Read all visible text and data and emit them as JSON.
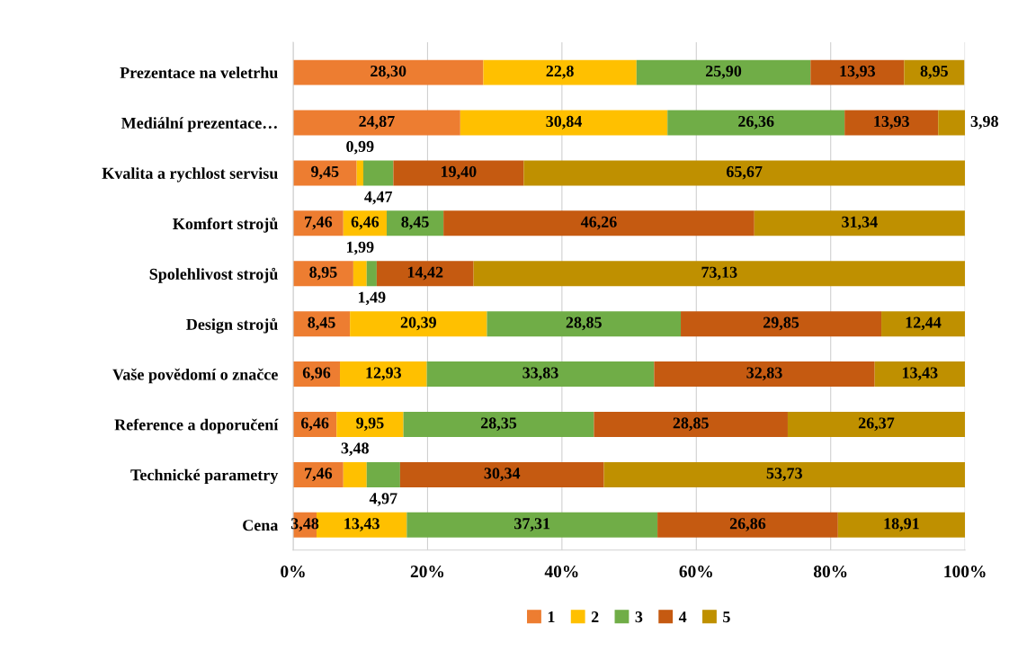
{
  "chart_data": {
    "type": "bar",
    "orientation": "horizontal",
    "stacked": true,
    "categories": [
      "Prezentace na veletrhu",
      "Mediální prezentace…",
      "Kvalita a rychlost servisu",
      "Komfort strojů",
      "Spolehlivost strojů",
      "Design strojů",
      "Vaše povědomí o značce",
      "Reference a doporučení",
      "Technické parametry",
      "Cena"
    ],
    "series": [
      {
        "name": "1",
        "color": "#ed7d31",
        "values": [
          28.3,
          24.87,
          9.45,
          7.46,
          8.95,
          8.45,
          6.96,
          6.46,
          7.46,
          3.48
        ],
        "value_labels": [
          "28,30",
          "24,87",
          "9,45",
          "7,46",
          "8,95",
          "8,45",
          "6,96",
          "6,46",
          "7,46",
          "3,48"
        ]
      },
      {
        "name": "2",
        "color": "#ffc000",
        "values": [
          22.8,
          30.84,
          0.99,
          6.46,
          1.99,
          20.39,
          12.93,
          9.95,
          3.48,
          13.43
        ],
        "value_labels": [
          "22,8",
          "30,84",
          "0,99",
          "6,46",
          "1,99",
          "20,39",
          "12,93",
          "9,95",
          "3,48",
          "13,43"
        ]
      },
      {
        "name": "3",
        "color": "#70ad47",
        "values": [
          25.9,
          26.36,
          4.47,
          8.45,
          1.49,
          28.85,
          33.83,
          28.35,
          4.97,
          37.31
        ],
        "value_labels": [
          "25,90",
          "26,36",
          "4,47",
          "8,45",
          "1,49",
          "28,85",
          "33,83",
          "28,35",
          "4,97",
          "37,31"
        ]
      },
      {
        "name": "4",
        "color": "#c55a11",
        "values": [
          13.93,
          13.93,
          19.4,
          46.26,
          14.42,
          29.85,
          32.83,
          28.85,
          30.34,
          26.86
        ],
        "value_labels": [
          "13,93",
          "13,93",
          "19,40",
          "46,26",
          "14,42",
          "29,85",
          "32,83",
          "28,85",
          "30,34",
          "26,86"
        ]
      },
      {
        "name": "5",
        "color": "#bf9000",
        "values": [
          8.95,
          3.98,
          65.67,
          31.34,
          73.13,
          12.44,
          13.43,
          26.37,
          53.73,
          18.91
        ],
        "value_labels": [
          "8,95",
          "3,98",
          "65,67",
          "31,34",
          "73,13",
          "12,44",
          "13,43",
          "26,37",
          "53,73",
          "18,91"
        ]
      }
    ],
    "xlim": [
      0,
      100
    ],
    "xticks": [
      {
        "value": 0,
        "label": "0%"
      },
      {
        "value": 20,
        "label": "20%"
      },
      {
        "value": 40,
        "label": "40%"
      },
      {
        "value": 60,
        "label": "60%"
      },
      {
        "value": 80,
        "label": "80%"
      },
      {
        "value": 100,
        "label": "100%"
      }
    ],
    "grid": "x",
    "legend": "bottom"
  }
}
